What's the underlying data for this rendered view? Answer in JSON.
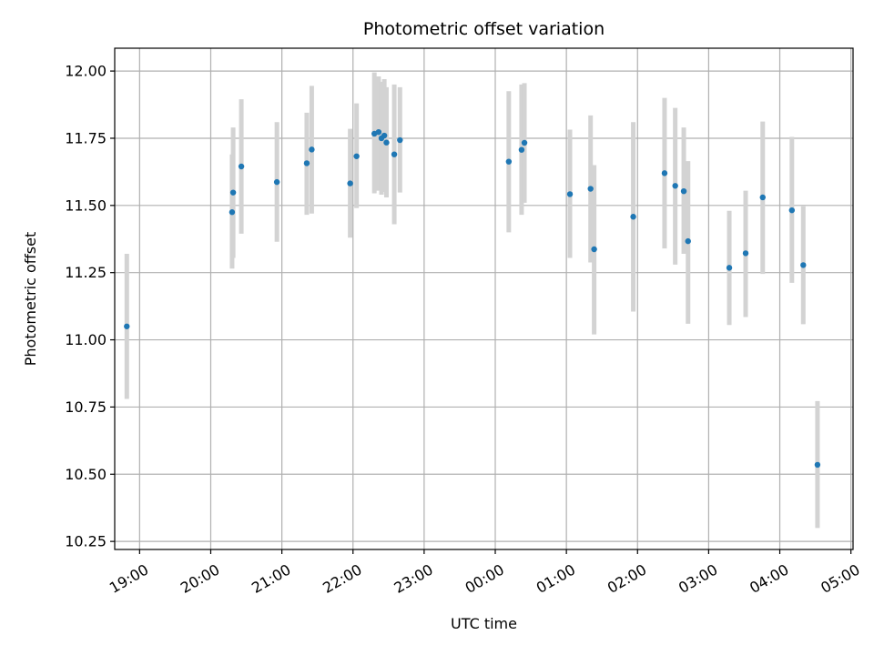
{
  "chart_data": {
    "type": "scatter",
    "title": "Photometric offset variation",
    "xlabel": "UTC time",
    "ylabel": "Photometric offset",
    "grid": true,
    "legend": "none",
    "point_color": "#1f77b4",
    "errorbar_color": "#d3d3d3",
    "xlim": [
      -5.35,
      5.03
    ],
    "ylim": [
      10.22,
      12.085
    ],
    "x_ticks": [
      {
        "value": -5,
        "label": "19:00"
      },
      {
        "value": -4,
        "label": "20:00"
      },
      {
        "value": -3,
        "label": "21:00"
      },
      {
        "value": -2,
        "label": "22:00"
      },
      {
        "value": -1,
        "label": "23:00"
      },
      {
        "value": 0,
        "label": "00:00"
      },
      {
        "value": 1,
        "label": "01:00"
      },
      {
        "value": 2,
        "label": "02:00"
      },
      {
        "value": 3,
        "label": "03:00"
      },
      {
        "value": 4,
        "label": "04:00"
      },
      {
        "value": 5,
        "label": "05:00"
      }
    ],
    "y_ticks": [
      {
        "value": 10.25,
        "label": "10.25"
      },
      {
        "value": 10.5,
        "label": "10.50"
      },
      {
        "value": 10.75,
        "label": "10.75"
      },
      {
        "value": 11.0,
        "label": "11.00"
      },
      {
        "value": 11.25,
        "label": "11.25"
      },
      {
        "value": 11.5,
        "label": "11.50"
      },
      {
        "value": 11.75,
        "label": "11.75"
      },
      {
        "value": 12.0,
        "label": "12.00"
      }
    ],
    "points": [
      {
        "x": -5.18,
        "y": 11.05,
        "ylo": 10.78,
        "yhi": 11.32
      },
      {
        "x": -3.7,
        "y": 11.475,
        "ylo": 11.265,
        "yhi": 11.69
      },
      {
        "x": -3.685,
        "y": 11.548,
        "ylo": 11.305,
        "yhi": 11.79
      },
      {
        "x": -3.57,
        "y": 11.645,
        "ylo": 11.395,
        "yhi": 11.895
      },
      {
        "x": -3.07,
        "y": 11.587,
        "ylo": 11.365,
        "yhi": 11.81
      },
      {
        "x": -2.65,
        "y": 11.657,
        "ylo": 11.465,
        "yhi": 11.845
      },
      {
        "x": -2.58,
        "y": 11.708,
        "ylo": 11.47,
        "yhi": 11.945
      },
      {
        "x": -2.04,
        "y": 11.582,
        "ylo": 11.38,
        "yhi": 11.785
      },
      {
        "x": -1.95,
        "y": 11.683,
        "ylo": 11.49,
        "yhi": 11.88
      },
      {
        "x": -1.7,
        "y": 11.767,
        "ylo": 11.545,
        "yhi": 11.995
      },
      {
        "x": -1.64,
        "y": 11.773,
        "ylo": 11.555,
        "yhi": 11.98
      },
      {
        "x": -1.6,
        "y": 11.75,
        "ylo": 11.54,
        "yhi": 11.96
      },
      {
        "x": -1.56,
        "y": 11.76,
        "ylo": 11.55,
        "yhi": 11.97
      },
      {
        "x": -1.53,
        "y": 11.734,
        "ylo": 11.53,
        "yhi": 11.94
      },
      {
        "x": -1.42,
        "y": 11.69,
        "ylo": 11.43,
        "yhi": 11.95
      },
      {
        "x": -1.34,
        "y": 11.743,
        "ylo": 11.548,
        "yhi": 11.94
      },
      {
        "x": 0.19,
        "y": 11.663,
        "ylo": 11.4,
        "yhi": 11.925
      },
      {
        "x": 0.37,
        "y": 11.707,
        "ylo": 11.465,
        "yhi": 11.95
      },
      {
        "x": 0.41,
        "y": 11.733,
        "ylo": 11.51,
        "yhi": 11.955
      },
      {
        "x": 1.05,
        "y": 11.542,
        "ylo": 11.305,
        "yhi": 11.782
      },
      {
        "x": 1.34,
        "y": 11.562,
        "ylo": 11.288,
        "yhi": 11.835
      },
      {
        "x": 1.39,
        "y": 11.337,
        "ylo": 11.02,
        "yhi": 11.65
      },
      {
        "x": 1.94,
        "y": 11.458,
        "ylo": 11.105,
        "yhi": 11.81
      },
      {
        "x": 2.38,
        "y": 11.62,
        "ylo": 11.34,
        "yhi": 11.9
      },
      {
        "x": 2.53,
        "y": 11.573,
        "ylo": 11.28,
        "yhi": 11.863
      },
      {
        "x": 2.65,
        "y": 11.553,
        "ylo": 11.32,
        "yhi": 11.79
      },
      {
        "x": 2.71,
        "y": 11.367,
        "ylo": 11.06,
        "yhi": 11.665
      },
      {
        "x": 3.29,
        "y": 11.268,
        "ylo": 11.055,
        "yhi": 11.48
      },
      {
        "x": 3.52,
        "y": 11.322,
        "ylo": 11.085,
        "yhi": 11.555
      },
      {
        "x": 3.76,
        "y": 11.53,
        "ylo": 11.245,
        "yhi": 11.812
      },
      {
        "x": 4.17,
        "y": 11.482,
        "ylo": 11.212,
        "yhi": 11.755
      },
      {
        "x": 4.33,
        "y": 11.278,
        "ylo": 11.058,
        "yhi": 11.497
      },
      {
        "x": 4.53,
        "y": 10.535,
        "ylo": 10.3,
        "yhi": 10.772
      }
    ]
  }
}
